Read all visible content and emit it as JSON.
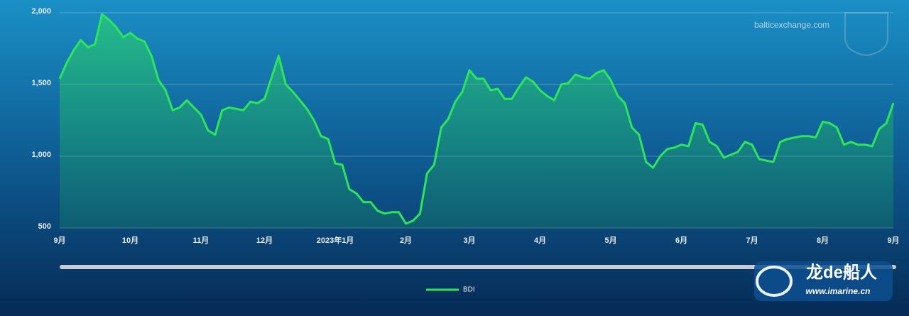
{
  "chart_data": {
    "type": "line",
    "watermark": "balticexchange.com",
    "categories": [
      "9月",
      null,
      null,
      null,
      null,
      null,
      null,
      null,
      null,
      null,
      "10月",
      null,
      null,
      null,
      null,
      null,
      null,
      null,
      null,
      null,
      "11月",
      null,
      null,
      null,
      null,
      null,
      null,
      null,
      null,
      "12月",
      null,
      null,
      null,
      null,
      null,
      null,
      null,
      null,
      null,
      "2023年1月",
      null,
      null,
      null,
      null,
      null,
      null,
      null,
      null,
      null,
      "2月",
      null,
      null,
      null,
      null,
      null,
      null,
      null,
      null,
      "3月",
      null,
      null,
      null,
      null,
      null,
      null,
      null,
      null,
      null,
      "4月",
      null,
      null,
      null,
      null,
      null,
      null,
      null,
      null,
      null,
      "5月",
      null,
      null,
      null,
      null,
      null,
      null,
      null,
      null,
      null,
      "6月",
      null,
      null,
      null,
      null,
      null,
      null,
      null,
      null,
      null,
      "7月",
      null,
      null,
      null,
      null,
      null,
      null,
      null,
      null,
      null,
      "8月",
      null,
      null,
      null,
      null,
      null,
      null,
      null,
      null,
      null,
      "9月"
    ],
    "series": [
      {
        "name": "BDI",
        "color": "#2ee55a",
        "values": [
          1540,
          1650,
          1740,
          1810,
          1760,
          1780,
          1990,
          1950,
          1900,
          1830,
          1860,
          1820,
          1800,
          1700,
          1530,
          1460,
          1320,
          1340,
          1390,
          1340,
          1290,
          1180,
          1150,
          1320,
          1340,
          1330,
          1320,
          1380,
          1370,
          1400,
          1550,
          1700,
          1500,
          1450,
          1390,
          1330,
          1250,
          1140,
          1120,
          950,
          940,
          770,
          740,
          680,
          680,
          620,
          600,
          610,
          610,
          530,
          550,
          600,
          880,
          940,
          1200,
          1260,
          1380,
          1450,
          1600,
          1540,
          1540,
          1460,
          1470,
          1400,
          1400,
          1480,
          1550,
          1520,
          1460,
          1420,
          1390,
          1500,
          1510,
          1570,
          1550,
          1540,
          1580,
          1600,
          1530,
          1420,
          1370,
          1200,
          1150,
          960,
          920,
          1000,
          1050,
          1060,
          1080,
          1070,
          1230,
          1220,
          1100,
          1070,
          990,
          1010,
          1030,
          1100,
          1080,
          980,
          970,
          960,
          1100,
          1120,
          1130,
          1140,
          1140,
          1130,
          1240,
          1230,
          1200,
          1080,
          1100,
          1080,
          1080,
          1070,
          1190,
          1230,
          1370
        ]
      }
    ],
    "ylim": [
      500,
      2000
    ],
    "yticks": [
      500,
      {
        "value": 1000,
        "label": "1,000"
      },
      {
        "value": 1500,
        "label": "1,500"
      },
      {
        "value": 2000,
        "label": "2,000"
      }
    ],
    "grid": true
  },
  "logo": {
    "brand": "龙de船人",
    "url": "www.imarine.cn"
  }
}
